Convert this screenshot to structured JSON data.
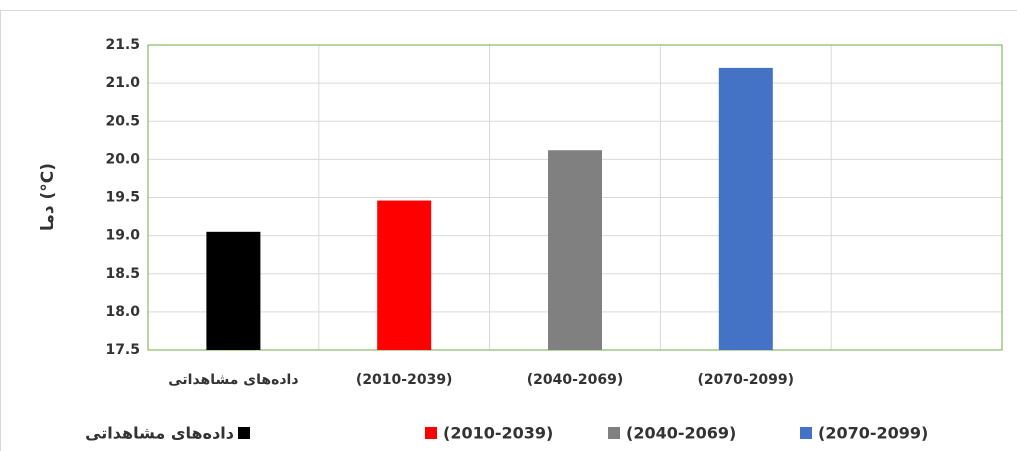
{
  "chart_data": {
    "type": "bar",
    "y_label": "دما (°C)",
    "categories": [
      "داده‌های مشاهداتی",
      "(2010-2039)",
      "(2040-2069)",
      "(2070-2099)",
      null
    ],
    "series": [
      {
        "name": "داده‌های مشاهداتی",
        "color": "#000000",
        "values": [
          19.05,
          null,
          null,
          null,
          null
        ]
      },
      {
        "name": "(2010-2039)",
        "color": "#ff0000",
        "values": [
          null,
          19.46,
          null,
          null,
          null
        ]
      },
      {
        "name": "(2040-2069)",
        "color": "#808080",
        "values": [
          null,
          null,
          20.12,
          null,
          null
        ]
      },
      {
        "name": "(2070-2099)",
        "color": "#4472c4",
        "values": [
          null,
          null,
          null,
          21.2,
          null
        ]
      }
    ],
    "ylim": [
      17.5,
      21.5
    ],
    "yticks": [
      17.5,
      {
        "value": 18,
        "label": "18.0"
      },
      18.5,
      {
        "value": 19,
        "label": "19.0"
      },
      19.5,
      {
        "value": 20,
        "label": "20.0"
      },
      20.5,
      {
        "value": 21,
        "label": "21.0"
      },
      21.5
    ],
    "grid": true,
    "legend": "bottom"
  }
}
